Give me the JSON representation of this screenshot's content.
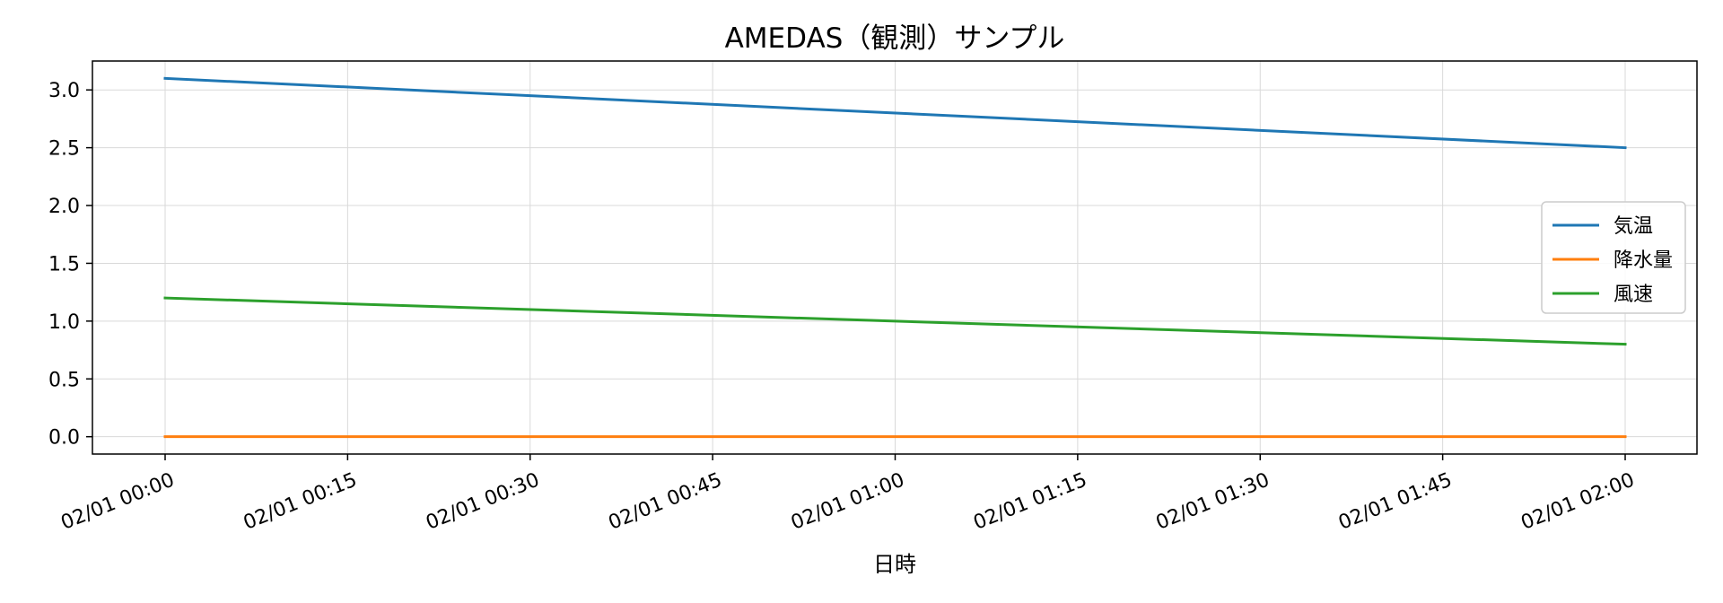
{
  "chart_data": {
    "type": "line",
    "title": "AMEDAS（観測）サンプル",
    "xlabel": "日時",
    "ylabel": "",
    "x": [
      "02/01 00:00",
      "02/01 02:00"
    ],
    "x_ticks": [
      "02/01 00:00",
      "02/01 00:15",
      "02/01 00:30",
      "02/01 00:45",
      "02/01 01:00",
      "02/01 01:15",
      "02/01 01:30",
      "02/01 01:45",
      "02/01 02:00"
    ],
    "ylim": [
      -0.15,
      3.25
    ],
    "y_ticks": [
      "0.0",
      "0.5",
      "1.0",
      "1.5",
      "2.0",
      "2.5",
      "3.0"
    ],
    "grid": true,
    "legend_position": "center-right",
    "series": [
      {
        "name": "気温",
        "values": [
          3.1,
          2.5
        ],
        "color": "#1f77b4"
      },
      {
        "name": "降水量",
        "values": [
          0.0,
          0.0
        ],
        "color": "#ff7f0e"
      },
      {
        "name": "風速",
        "values": [
          1.2,
          0.8
        ],
        "color": "#2ca02c"
      }
    ]
  }
}
